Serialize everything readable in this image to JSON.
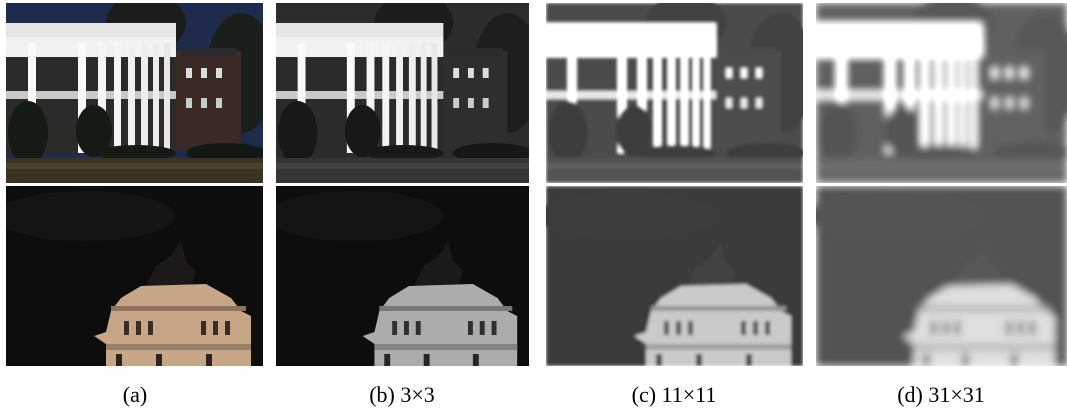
{
  "figure": {
    "captions": [
      "(a)",
      "(b) 3×3",
      "(c) 11×11",
      "(d) 31×31"
    ]
  }
}
